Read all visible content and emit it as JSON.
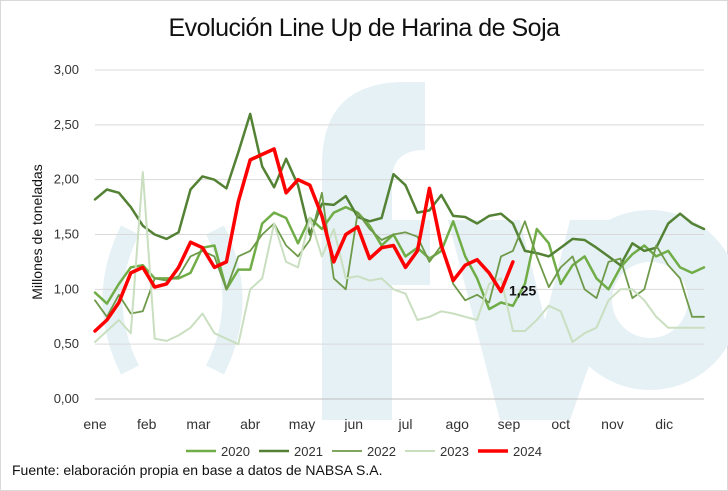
{
  "chart_data": {
    "type": "line",
    "title": "Evolución Line Up de Harina de Soja",
    "ylabel": "Millones de toneladas",
    "xlabel": "",
    "ylim": [
      0,
      3
    ],
    "yticks": [
      "0,00",
      "0,50",
      "1,00",
      "1,50",
      "2,00",
      "2,50",
      "3,00"
    ],
    "months": [
      "ene",
      "feb",
      "mar",
      "abr",
      "may",
      "jun",
      "jul",
      "ago",
      "sep",
      "oct",
      "nov",
      "dic"
    ],
    "x_unit": "week",
    "grid": "horizontal",
    "legend_position": "bottom",
    "annotation": {
      "text": "1,25",
      "series": "2024",
      "week": 34
    },
    "source": "Fuente: elaboración propia en base a datos de NABSA S.A.",
    "series": [
      {
        "name": "2020",
        "color": "#70ad47",
        "width": 2.5,
        "values": [
          0.97,
          0.87,
          1.05,
          1.2,
          1.22,
          1.1,
          1.1,
          1.1,
          1.15,
          1.38,
          1.4,
          1.0,
          1.18,
          1.18,
          1.6,
          1.7,
          1.65,
          1.42,
          1.65,
          1.55,
          1.7,
          1.75,
          1.7,
          1.58,
          1.4,
          1.5,
          1.3,
          1.38,
          1.28,
          1.35,
          1.62,
          1.3,
          1.1,
          0.82,
          0.88,
          0.85,
          1.05,
          1.55,
          1.42,
          1.05,
          1.22,
          1.3,
          1.1,
          1.0,
          1.2,
          1.32,
          1.4,
          1.3,
          1.35,
          1.2,
          1.15,
          1.2
        ]
      },
      {
        "name": "2021",
        "color": "#548235",
        "width": 2.5,
        "values": [
          1.82,
          1.91,
          1.88,
          1.75,
          1.58,
          1.5,
          1.46,
          1.52,
          1.91,
          2.03,
          2.0,
          1.92,
          2.25,
          2.6,
          2.12,
          1.93,
          2.19,
          1.95,
          1.5,
          1.78,
          1.77,
          1.85,
          1.66,
          1.62,
          1.65,
          2.05,
          1.95,
          1.7,
          1.72,
          1.86,
          1.67,
          1.66,
          1.6,
          1.67,
          1.69,
          1.6,
          1.35,
          1.33,
          1.3,
          1.38,
          1.46,
          1.45,
          1.38,
          1.3,
          1.22,
          1.42,
          1.35,
          1.38,
          1.6,
          1.69,
          1.6,
          1.55
        ]
      },
      {
        "name": "2022",
        "color": "#6f9a4a",
        "width": 1.8,
        "values": [
          0.9,
          0.75,
          0.95,
          0.78,
          0.8,
          1.1,
          1.08,
          1.12,
          1.3,
          1.35,
          1.3,
          1.0,
          1.3,
          1.35,
          1.5,
          1.6,
          1.4,
          1.3,
          1.45,
          1.88,
          1.1,
          1.0,
          1.7,
          1.55,
          1.45,
          1.5,
          1.52,
          1.48,
          1.25,
          1.4,
          1.05,
          0.9,
          0.95,
          0.88,
          1.3,
          1.35,
          1.62,
          1.3,
          1.02,
          1.2,
          1.3,
          1.0,
          0.92,
          1.25,
          1.28,
          0.92,
          1.0,
          1.4,
          1.22,
          1.1,
          0.75,
          0.75
        ]
      },
      {
        "name": "2023",
        "color": "#c9dfc0",
        "width": 2,
        "values": [
          0.52,
          0.62,
          0.72,
          0.6,
          2.07,
          0.55,
          0.53,
          0.58,
          0.65,
          0.78,
          0.6,
          0.55,
          0.5,
          1.0,
          1.1,
          1.6,
          1.25,
          1.2,
          1.65,
          1.3,
          1.55,
          1.1,
          1.12,
          1.08,
          1.1,
          1.0,
          0.96,
          0.72,
          0.75,
          0.8,
          0.78,
          0.75,
          0.72,
          1.05,
          1.1,
          0.62,
          0.62,
          0.72,
          0.85,
          0.8,
          0.52,
          0.6,
          0.65,
          0.9,
          1.0,
          1.0,
          0.9,
          0.75,
          0.65,
          0.65,
          0.65,
          0.65
        ]
      },
      {
        "name": "2024",
        "color": "#ff0000",
        "width": 3.5,
        "values": [
          0.62,
          0.72,
          0.88,
          1.15,
          1.2,
          1.02,
          1.05,
          1.2,
          1.43,
          1.38,
          1.2,
          1.25,
          1.8,
          2.18,
          2.23,
          2.28,
          1.88,
          2.0,
          1.95,
          1.67,
          1.25,
          1.5,
          1.57,
          1.28,
          1.38,
          1.4,
          1.2,
          1.35,
          1.92,
          1.4,
          1.08,
          1.22,
          1.27,
          1.15,
          0.98,
          1.25
        ]
      }
    ]
  }
}
